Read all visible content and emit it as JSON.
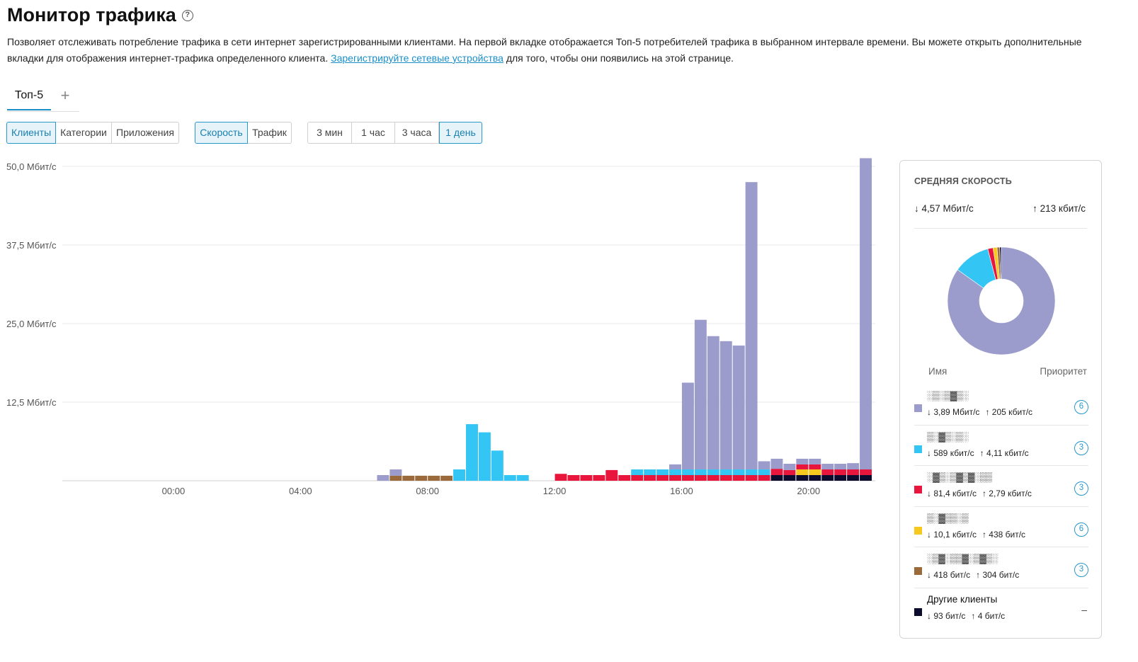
{
  "page": {
    "title": "Монитор трафика",
    "description_part1": "Позволяет отслеживать потребление трафика в сети интернет зарегистрированными клиентами. На первой вкладке отображается Топ-5 потребителей трафика в выбранном интервале времени. Вы можете открыть дополнительные вкладки для отображения интернет-трафика определенного клиента. ",
    "description_link": "Зарегистрируйте сетевые устройства",
    "description_part2": " для того, чтобы они появились на этой странице."
  },
  "tabs": {
    "top5": "Топ-5",
    "add": "+"
  },
  "filters": {
    "group": [
      "Клиенты",
      "Категории",
      "Приложения"
    ],
    "group_active": 0,
    "metric": [
      "Скорость",
      "Трафик"
    ],
    "metric_active": 0,
    "range": [
      "3 мин",
      "1 час",
      "3 часа",
      "1 день"
    ],
    "range_active": 3
  },
  "colors": {
    "c1": "#9b9bcc",
    "c2": "#33c6f4",
    "c3": "#e8153c",
    "c4": "#f7c81e",
    "c5": "#9b6a3a",
    "other": "#0b0b2e"
  },
  "chart_data": {
    "type": "bar",
    "stacked": true,
    "y_ticks": [
      "50,0 Мбит/с",
      "37,5 Мбит/с",
      "25,0 Мбит/с",
      "12,5 Мбит/с"
    ],
    "y_tick_values": [
      50,
      37.5,
      25,
      12.5
    ],
    "ylim": [
      0,
      50
    ],
    "x_ticks": [
      "00:00",
      "04:00",
      "08:00",
      "12:00",
      "16:00",
      "20:00"
    ],
    "x_tick_hours": [
      0,
      4,
      8,
      12,
      16,
      20
    ],
    "xlim_hours": [
      -3.5,
      22.1
    ],
    "bin_hours": 0.4,
    "grid": true,
    "bars": [
      {
        "t": 6.6,
        "c1": 0.9
      },
      {
        "t": 7.0,
        "c1": 1.0,
        "c5": 0.8
      },
      {
        "t": 7.4,
        "c5": 0.8
      },
      {
        "t": 7.8,
        "c5": 0.8
      },
      {
        "t": 8.2,
        "c5": 0.8
      },
      {
        "t": 8.6,
        "c5": 0.8
      },
      {
        "t": 9.0,
        "c2": 1.8
      },
      {
        "t": 9.4,
        "c2": 9.0
      },
      {
        "t": 9.8,
        "c2": 7.7
      },
      {
        "t": 10.2,
        "c2": 4.8
      },
      {
        "t": 10.6,
        "c2": 0.9
      },
      {
        "t": 11.0,
        "c2": 0.9
      },
      {
        "t": 12.2,
        "c3": 1.1
      },
      {
        "t": 12.6,
        "c3": 0.9
      },
      {
        "t": 13.0,
        "c3": 0.9
      },
      {
        "t": 13.4,
        "c3": 0.9
      },
      {
        "t": 13.8,
        "c3": 1.7
      },
      {
        "t": 14.2,
        "c3": 0.9
      },
      {
        "t": 14.6,
        "c3": 0.9,
        "c2": 0.9
      },
      {
        "t": 15.0,
        "c3": 0.9,
        "c2": 0.9
      },
      {
        "t": 15.4,
        "c3": 0.9,
        "c2": 0.9
      },
      {
        "t": 15.8,
        "c3": 0.9,
        "c2": 0.9,
        "c1": 0.8
      },
      {
        "t": 16.2,
        "c3": 0.9,
        "c2": 0.9,
        "c1": 13.8
      },
      {
        "t": 16.6,
        "c3": 0.9,
        "c2": 0.9,
        "c1": 23.8
      },
      {
        "t": 17.0,
        "c3": 0.9,
        "c2": 0.9,
        "c1": 21.2
      },
      {
        "t": 17.4,
        "c3": 0.9,
        "c2": 0.9,
        "c1": 20.4
      },
      {
        "t": 17.8,
        "c3": 0.9,
        "c2": 0.9,
        "c1": 19.7
      },
      {
        "t": 18.2,
        "c3": 0.9,
        "c2": 0.9,
        "c1": 45.7
      },
      {
        "t": 18.6,
        "c3": 0.9,
        "c2": 0.9,
        "c1": 1.3
      },
      {
        "t": 19.0,
        "other": 0.9,
        "c3": 1.0,
        "c1": 1.6
      },
      {
        "t": 19.4,
        "other": 0.9,
        "c3": 0.8,
        "c1": 1.0
      },
      {
        "t": 19.8,
        "other": 0.9,
        "c4": 0.9,
        "c3": 0.8,
        "c1": 0.9
      },
      {
        "t": 20.2,
        "other": 0.9,
        "c4": 0.9,
        "c3": 0.8,
        "c1": 0.9
      },
      {
        "t": 20.6,
        "other": 0.9,
        "c3": 0.9,
        "c1": 0.9
      },
      {
        "t": 21.0,
        "other": 0.9,
        "c3": 0.9,
        "c1": 0.9
      },
      {
        "t": 21.4,
        "other": 0.9,
        "c3": 0.9,
        "c1": 1.0
      },
      {
        "t": 21.8,
        "other": 0.9,
        "c3": 0.9,
        "c1": 49.5
      }
    ]
  },
  "panel": {
    "title": "СРЕДНЯЯ СКОРОСТЬ",
    "avg_down": "↓ 4,57 Мбит/с",
    "avg_up": "↑ 213 кбит/с",
    "col_name": "Имя",
    "col_priority": "Приоритет",
    "donut": [
      {
        "key": "c1",
        "value": 85.1
      },
      {
        "key": "c2",
        "value": 11.1
      },
      {
        "key": "c3",
        "value": 1.6
      },
      {
        "key": "c4",
        "value": 1.2
      },
      {
        "key": "c5",
        "value": 0.8
      },
      {
        "key": "other",
        "value": 0.5
      }
    ],
    "clients": [
      {
        "color": "c1",
        "name": "░▒░▒▓▒░",
        "down": "↓ 3,89 Мбит/с",
        "up": "↑ 205 кбит/с",
        "priority": "6"
      },
      {
        "color": "c2",
        "name": "▒░▓▒░▒░",
        "down": "↓ 589 кбит/с",
        "up": "↑ 4,11 кбит/с",
        "priority": "3"
      },
      {
        "color": "c3",
        "name": "░▓▒░▒▓▒▓░▒▒",
        "down": "↓ 81,4 кбит/с",
        "up": "↑ 2,79 кбит/с",
        "priority": "3"
      },
      {
        "color": "c4",
        "name": "▒░▓▒▒░▒",
        "down": "↓ 10,1 кбит/с",
        "up": "↑ 438 бит/с",
        "priority": "6"
      },
      {
        "color": "c5",
        "name": "░▒▓░▒▒▓░▒▓▒░",
        "down": "↓ 418 бит/с",
        "up": "↑ 304 бит/с",
        "priority": "3"
      }
    ],
    "other": {
      "color": "other",
      "name": "Другие клиенты",
      "down": "↓ 93 бит/с",
      "up": "↑ 4 бит/с",
      "priority": "–"
    }
  }
}
